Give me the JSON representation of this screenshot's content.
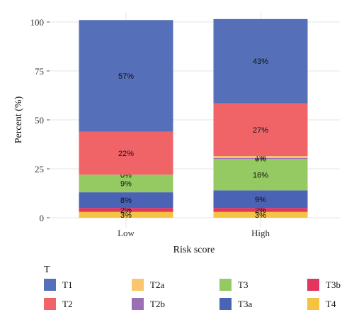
{
  "chart_data": {
    "type": "bar",
    "stacked": true,
    "categories": [
      "Low",
      "High"
    ],
    "series": [
      {
        "name": "T4",
        "color": "#F5C242",
        "values": [
          3,
          3
        ],
        "labels": [
          "3%",
          "3%"
        ]
      },
      {
        "name": "T3b",
        "color": "#E2365E",
        "values": [
          2,
          2
        ],
        "labels": [
          "2%",
          "2%"
        ]
      },
      {
        "name": "T3a",
        "color": "#4A63B5",
        "values": [
          8,
          9
        ],
        "labels": [
          "8%",
          "9%"
        ]
      },
      {
        "name": "T3",
        "color": "#95C962",
        "values": [
          9,
          16
        ],
        "labels": [
          "9%",
          "16%"
        ]
      },
      {
        "name": "T2b",
        "color": "#9B6FB3",
        "values": [
          0,
          0.5
        ],
        "labels": [
          "0%",
          "0%"
        ]
      },
      {
        "name": "T2a",
        "color": "#F8C66E",
        "values": [
          0,
          1
        ],
        "labels": [
          "",
          "1%"
        ]
      },
      {
        "name": "T2",
        "color": "#F06468",
        "values": [
          22,
          27
        ],
        "labels": [
          "22%",
          "27%"
        ]
      },
      {
        "name": "T1",
        "color": "#5570B8",
        "values": [
          57,
          43
        ],
        "labels": [
          "57%",
          "43%"
        ]
      }
    ],
    "ylim": [
      0,
      100
    ],
    "yticks": [
      0,
      25,
      50,
      75,
      100
    ],
    "xlabel": "Risk score",
    "ylabel": "Percent (%)",
    "legend": {
      "title": "T",
      "position": "bottom",
      "order": [
        "T1",
        "T2a",
        "T3",
        "T3b",
        "T2",
        "T2b",
        "T3a",
        "T4"
      ]
    },
    "grid": true
  }
}
